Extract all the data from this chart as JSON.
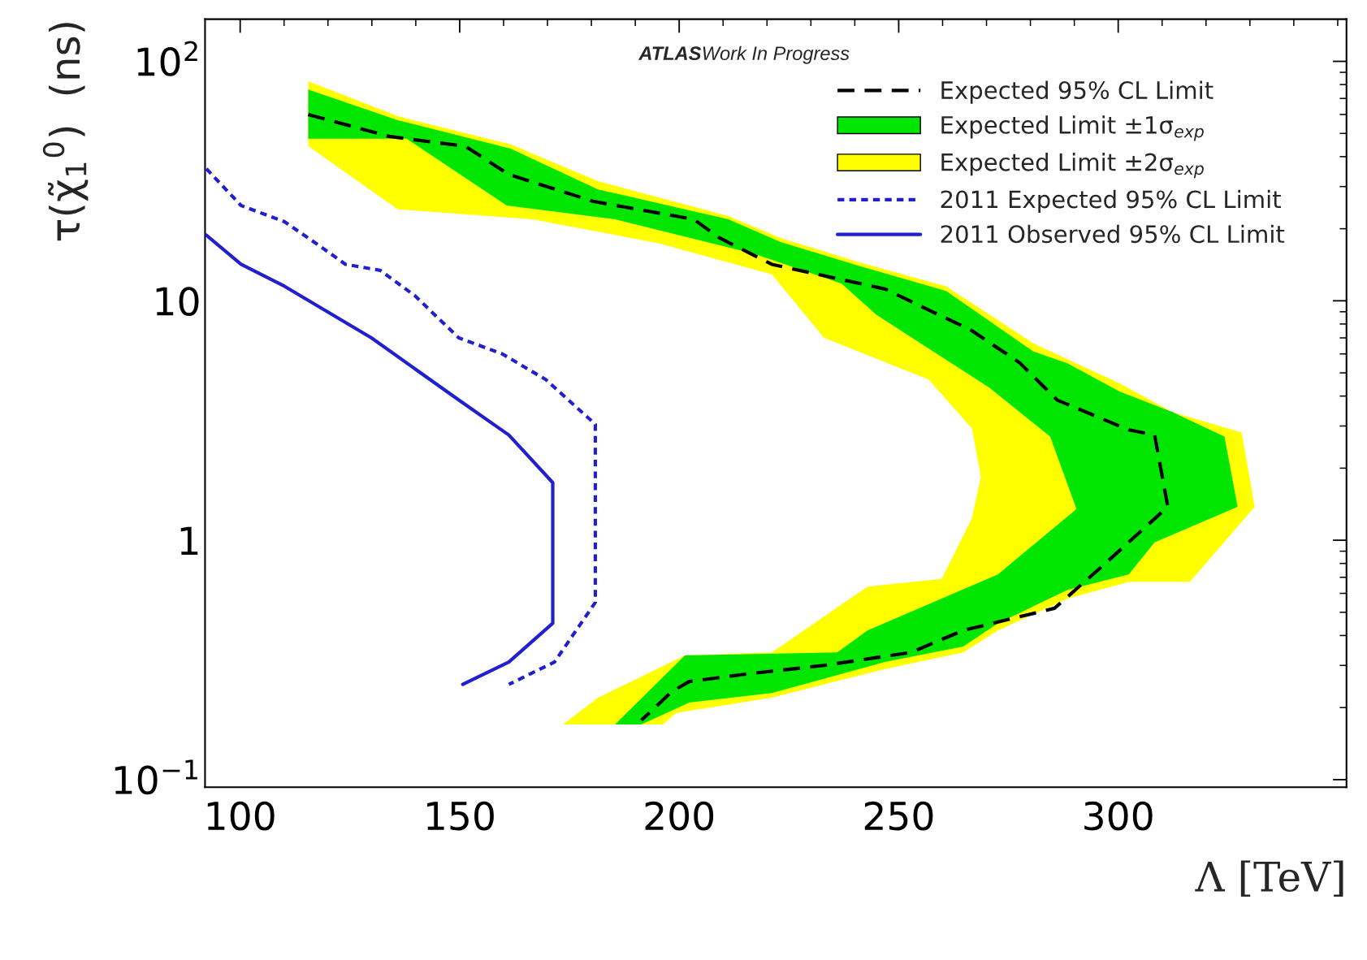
{
  "chart_data": {
    "type": "line",
    "xlabel": "Λ [TeV]",
    "ylabel": "τ(χ̃$_{1}$$^{0}$)  (ns)",
    "log": "y",
    "xlim": [
      92,
      352
    ],
    "ylim": [
      0.093,
      150
    ],
    "xticks": [
      100,
      150,
      200,
      250,
      300
    ],
    "yticks": [
      {
        "value": 0.1,
        "label": "10$^{−1}$"
      },
      1,
      10,
      {
        "value": 100,
        "label": "10$^{2}$"
      }
    ],
    "grid": false,
    "legend": "top right",
    "annotations": [
      "ATLAS",
      "Work In Progress"
    ],
    "series": [
      {
        "name": "Expected 95% CL Limit",
        "line_style": "dashed",
        "color": "#000000",
        "x": [
          115.5,
          133.9,
          151.3,
          161.2,
          180.5,
          203.3,
          209.2,
          221.1,
          246.9,
          266.7,
          277.6,
          286.1,
          302.4,
          308.3,
          311.3,
          296.4,
          285.5,
          264.7,
          252.8,
          233.0,
          215.2,
          202.3,
          198.3,
          191.4
        ],
        "values": [
          60,
          48.6,
          44.2,
          33.7,
          26,
          21.9,
          18.3,
          14.2,
          11.2,
          7.5,
          5.5,
          3.85,
          2.89,
          2.75,
          1.38,
          0.78,
          0.52,
          0.42,
          0.34,
          0.3,
          0.276,
          0.257,
          0.233,
          0.177
        ]
      },
      {
        "name": "Expected Limit ±1σ$_{exp}$",
        "type": "area",
        "color": "#00e600",
        "x": [
          115.5,
          135.9,
          161.6,
          181.5,
          211.2,
          223.1,
          240.9,
          260.8,
          280.6,
          288.5,
          300.4,
          312.3,
          324.2,
          327.2,
          308.3,
          302.4,
          288.5,
          272.6,
          264.7,
          246.9,
          221.1,
          202.3,
          191.4,
          183.5,
          185.4,
          201.3,
          236.0,
          242.9,
          272.6,
          290.5,
          284.5,
          270.7,
          244.9,
          237.0,
          217.1,
          185.4,
          160.7,
          137.9,
          115.5
        ],
        "values": [
          76.3,
          56.8,
          43.2,
          29.2,
          21.9,
          17.6,
          14.0,
          11.0,
          6.15,
          5.47,
          4.17,
          3.43,
          2.71,
          1.38,
          0.98,
          0.72,
          0.62,
          0.45,
          0.36,
          0.31,
          0.23,
          0.21,
          0.17,
          0.17,
          0.17,
          0.33,
          0.34,
          0.42,
          0.72,
          1.35,
          2.71,
          4.33,
          8.74,
          11.8,
          15.7,
          21.9,
          25.0,
          47.5,
          47.5
        ]
      },
      {
        "name": "Expected Limit ±2σ$_{exp}$",
        "type": "area",
        "color": "#ffff00",
        "x": [
          115.5,
          135.9,
          161.6,
          181.5,
          211.2,
          223.1,
          240.9,
          260.8,
          280.6,
          288.5,
          300.4,
          312.3,
          328.1,
          331.1,
          316.3,
          302.4,
          288.5,
          272.6,
          264.7,
          246.9,
          221.1,
          199.3,
          196.3,
          173.5,
          181.5,
          201.3,
          221.1,
          242.9,
          259.8,
          266.7,
          268.7,
          266.7,
          256.8,
          233.0,
          221.1,
          195.3,
          166.6,
          135.9,
          115.5
        ],
        "values": [
          82.6,
          59.0,
          45.0,
          31.6,
          22.6,
          18.3,
          14.5,
          11.5,
          6.65,
          5.69,
          4.51,
          3.43,
          2.82,
          1.38,
          0.67,
          0.67,
          0.57,
          0.42,
          0.34,
          0.29,
          0.22,
          0.19,
          0.17,
          0.17,
          0.22,
          0.33,
          0.34,
          0.64,
          0.69,
          1.24,
          1.84,
          2.93,
          4.69,
          7.0,
          12.9,
          17.4,
          21.9,
          24.1,
          44.2
        ]
      },
      {
        "name": "2011 Expected 95% CL Limit",
        "line_style": "dotted",
        "color": "#2020d0",
        "x": [
          92.3,
          100.2,
          110.1,
          118.0,
          124.0,
          131.9,
          139.8,
          149.8,
          159.7,
          169.6,
          180.9,
          180.9,
          171.6,
          161.2
        ],
        "values": [
          35.6,
          25.0,
          21.4,
          17.0,
          14.2,
          13.4,
          10.5,
          7.0,
          6.0,
          4.69,
          3.05,
          0.55,
          0.31,
          0.25
        ]
      },
      {
        "name": "2011 Observed 95% CL Limit",
        "line_style": "solid",
        "color": "#2020d0",
        "x": [
          92.3,
          100.2,
          110.1,
          129.9,
          149.8,
          161.2,
          171.2,
          171.2,
          161.2,
          150.7
        ],
        "values": [
          18.8,
          14.2,
          11.5,
          7.0,
          3.85,
          2.75,
          1.74,
          0.45,
          0.31,
          0.25
        ]
      }
    ]
  }
}
